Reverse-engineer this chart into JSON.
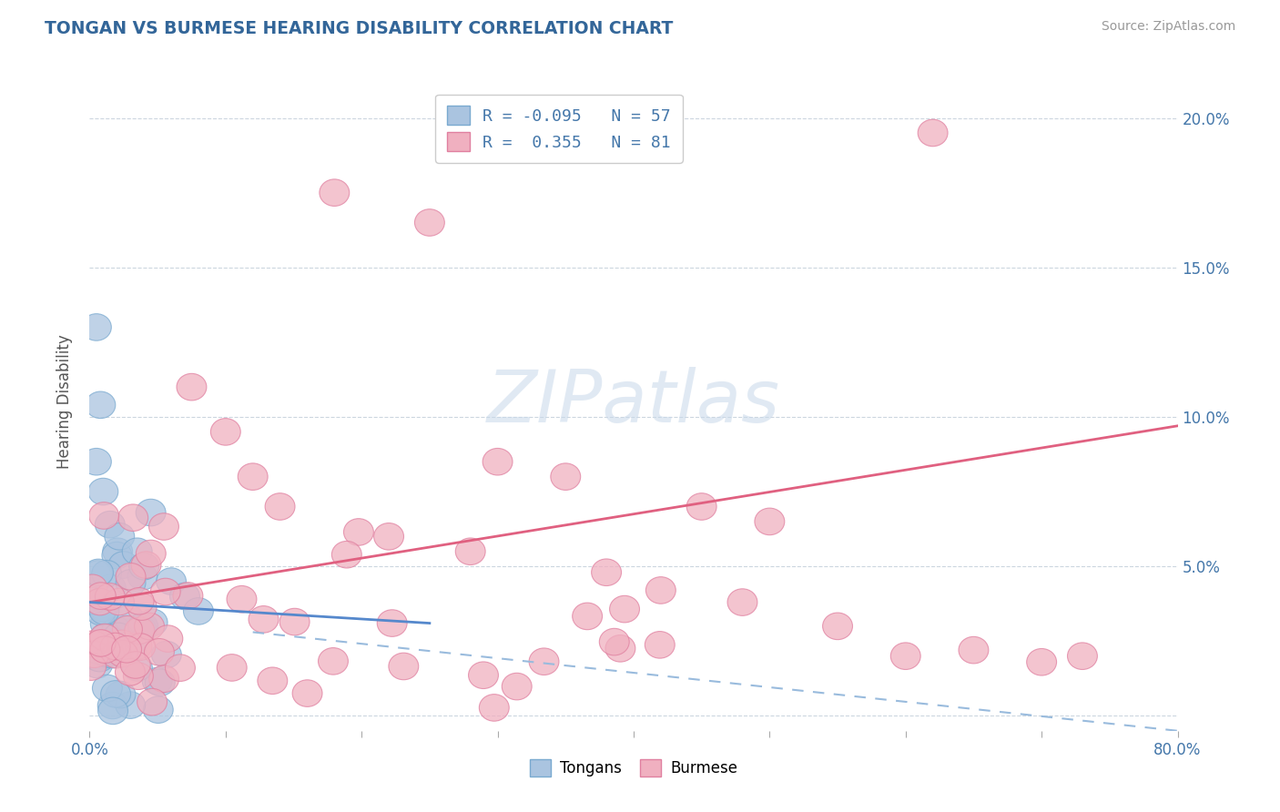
{
  "title": "TONGAN VS BURMESE HEARING DISABILITY CORRELATION CHART",
  "source": "Source: ZipAtlas.com",
  "ylabel": "Hearing Disability",
  "legend_tongan": "Tongans",
  "legend_burmese": "Burmese",
  "tongan_R": -0.095,
  "tongan_N": 57,
  "burmese_R": 0.355,
  "burmese_N": 81,
  "xlim": [
    0.0,
    0.8
  ],
  "ylim": [
    -0.005,
    0.215
  ],
  "yticks": [
    0.0,
    0.05,
    0.1,
    0.15,
    0.2
  ],
  "ytick_labels": [
    "",
    "5.0%",
    "10.0%",
    "15.0%",
    "20.0%"
  ],
  "color_tongan_fill": "#aac4e0",
  "color_tongan_edge": "#7aaad0",
  "color_burmese_fill": "#f0b0c0",
  "color_burmese_edge": "#e080a0",
  "color_tongan_line": "#5588cc",
  "color_burmese_line": "#e06080",
  "color_dashed": "#99bbdd",
  "watermark": "ZIPatlas",
  "background_color": "#ffffff",
  "burmese_line_x0": 0.0,
  "burmese_line_y0": 0.038,
  "burmese_line_x1": 0.8,
  "burmese_line_y1": 0.097,
  "tongan_line_x0": 0.0,
  "tongan_line_y0": 0.038,
  "tongan_line_x1": 0.25,
  "tongan_line_y1": 0.031,
  "dashed_line_x0": 0.12,
  "dashed_line_y0": 0.028,
  "dashed_line_x1": 0.8,
  "dashed_line_y1": -0.005
}
